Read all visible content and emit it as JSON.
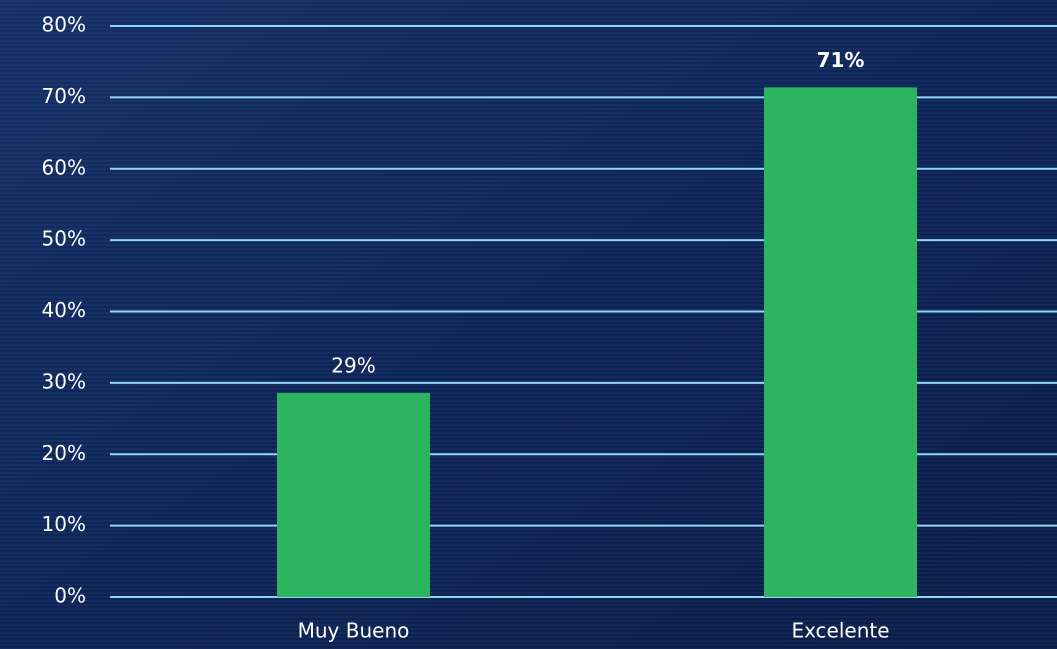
{
  "chart_data": {
    "type": "bar",
    "categories": [
      "Muy Bueno",
      "Excelente"
    ],
    "values": [
      28.6,
      71.4
    ],
    "value_labels": [
      "29%",
      "71%"
    ],
    "color": "#2db45e",
    "ylim": [
      0,
      80
    ],
    "yticks": [
      {
        "value": 0,
        "label": "0%"
      },
      {
        "value": 10,
        "label": "10%"
      },
      {
        "value": 20,
        "label": "20%"
      },
      {
        "value": 30,
        "label": "30%"
      },
      {
        "value": 40,
        "label": "40%"
      },
      {
        "value": 50,
        "label": "50%"
      },
      {
        "value": 60,
        "label": "60%"
      },
      {
        "value": 70,
        "label": "70%"
      },
      {
        "value": 80,
        "label": "80%"
      }
    ],
    "grid": true
  }
}
